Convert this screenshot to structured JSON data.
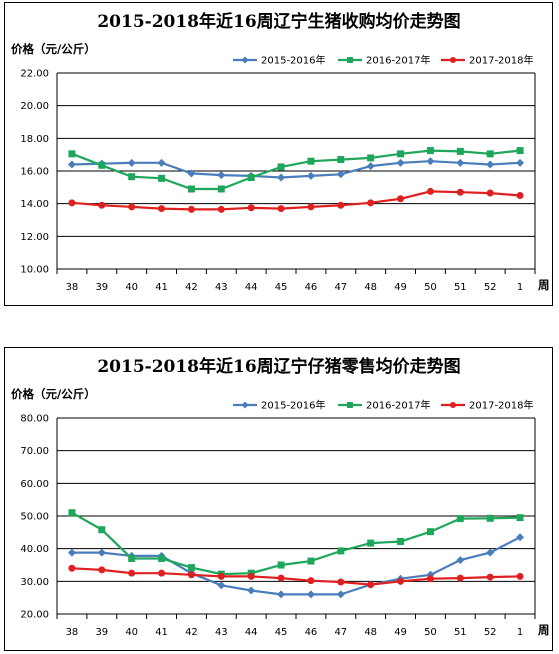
{
  "chart_data": [
    {
      "type": "line",
      "title": "2015-2018年近16周辽宁生猪收购均价走势图",
      "ylabel": "价格（元/公斤）",
      "xlabel": "周",
      "categories": [
        "38",
        "39",
        "40",
        "41",
        "42",
        "43",
        "44",
        "45",
        "46",
        "47",
        "48",
        "49",
        "50",
        "51",
        "52",
        "1"
      ],
      "ylim": [
        10,
        22
      ],
      "yticks": [
        "10.00",
        "12.00",
        "14.00",
        "16.00",
        "18.00",
        "20.00",
        "22.00"
      ],
      "ytick_values": [
        10,
        12,
        14,
        16,
        18,
        20,
        22
      ],
      "grid": true,
      "legend_position": "top-right",
      "series": [
        {
          "name": "2015-2016年",
          "color": "#4a7ebb",
          "marker": "diamond",
          "values": [
            16.4,
            16.45,
            16.5,
            16.5,
            15.85,
            15.75,
            15.7,
            15.6,
            15.7,
            15.8,
            16.3,
            16.5,
            16.6,
            16.5,
            16.4,
            16.5
          ]
        },
        {
          "name": "2016-2017年",
          "color": "#1ea65a",
          "marker": "square",
          "values": [
            17.05,
            16.35,
            15.65,
            15.55,
            14.9,
            14.9,
            15.6,
            16.25,
            16.6,
            16.7,
            16.8,
            17.05,
            17.25,
            17.2,
            17.05,
            17.25
          ]
        },
        {
          "name": "2017-2018年",
          "color": "#e02020",
          "marker": "circle",
          "values": [
            14.05,
            13.9,
            13.8,
            13.7,
            13.65,
            13.65,
            13.75,
            13.7,
            13.8,
            13.9,
            14.05,
            14.3,
            14.75,
            14.7,
            14.65,
            14.5
          ]
        }
      ]
    },
    {
      "type": "line",
      "title": "2015-2018年近16周辽宁仔猪零售均价走势图",
      "ylabel": "价格（元/公斤）",
      "xlabel": "周",
      "categories": [
        "38",
        "39",
        "40",
        "41",
        "42",
        "43",
        "44",
        "45",
        "46",
        "47",
        "48",
        "49",
        "50",
        "51",
        "52",
        "1"
      ],
      "ylim": [
        20,
        80
      ],
      "yticks": [
        "20.00",
        "30.00",
        "40.00",
        "50.00",
        "60.00",
        "70.00",
        "80.00"
      ],
      "ytick_values": [
        20,
        30,
        40,
        50,
        60,
        70,
        80
      ],
      "grid": true,
      "legend_position": "top-right",
      "series": [
        {
          "name": "2015-2016年",
          "color": "#4a7ebb",
          "marker": "diamond",
          "values": [
            38.8,
            38.8,
            37.8,
            37.8,
            32.5,
            28.8,
            27.2,
            26.0,
            26.0,
            26.0,
            29.0,
            30.8,
            32.0,
            36.5,
            38.8,
            43.5
          ]
        },
        {
          "name": "2016-2017年",
          "color": "#1ea65a",
          "marker": "square",
          "values": [
            51.0,
            45.8,
            37.0,
            37.0,
            34.2,
            32.2,
            32.5,
            35.0,
            36.2,
            39.3,
            41.7,
            42.2,
            45.2,
            49.2,
            49.3,
            49.5
          ]
        },
        {
          "name": "2017-2018年",
          "color": "#e02020",
          "marker": "circle",
          "values": [
            34.0,
            33.5,
            32.5,
            32.5,
            32.0,
            31.5,
            31.5,
            31.0,
            30.2,
            29.8,
            29.0,
            30.0,
            30.8,
            31.0,
            31.3,
            31.5
          ]
        }
      ]
    }
  ]
}
